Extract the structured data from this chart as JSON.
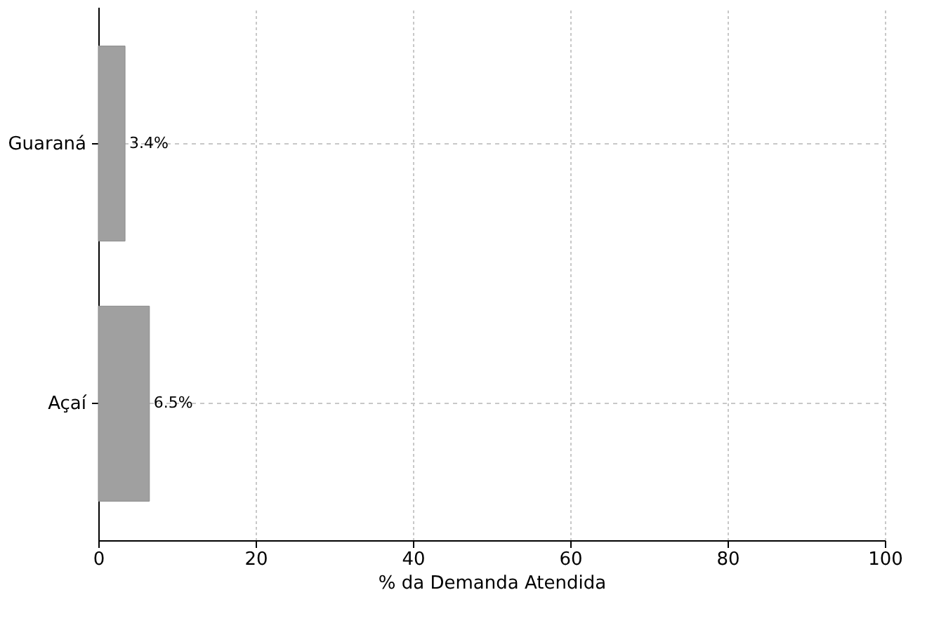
{
  "chart_data": {
    "type": "bar",
    "orientation": "horizontal",
    "categories": [
      "Guaraná",
      "Açaí"
    ],
    "series": [
      {
        "color": "#a0a0a0",
        "values": [
          3.4,
          6.5
        ],
        "value_labels": [
          "3.4%",
          "6.5%"
        ]
      }
    ],
    "xlabel": "% da Demanda Atendida",
    "xlim": [
      0,
      100
    ],
    "xticks": [
      0,
      20,
      40,
      60,
      80,
      100
    ],
    "grid": true
  }
}
